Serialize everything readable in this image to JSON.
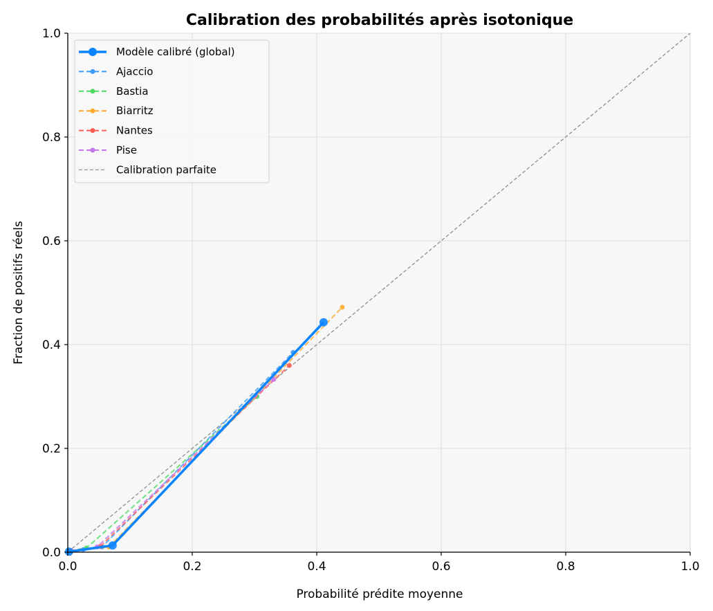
{
  "chart_data": {
    "type": "line",
    "title": "Calibration des probabilités après isotonique",
    "xlabel": "Probabilité prédite moyenne",
    "ylabel": "Fraction de positifs réels",
    "xlim": [
      0,
      1
    ],
    "ylim": [
      0,
      1
    ],
    "xticks": [
      "0.0",
      "0.2",
      "0.4",
      "0.6",
      "0.8",
      "1.0"
    ],
    "yticks": [
      "0.0",
      "0.2",
      "0.4",
      "0.6",
      "0.8",
      "1.0"
    ],
    "grid": true,
    "legend_position": "upper left",
    "series": [
      {
        "name": "Modèle calibré (global)",
        "color": "#0a84ff",
        "style": "solid",
        "marker_size": 6,
        "line_width": 3.5,
        "x": [
          0.002,
          0.072,
          0.411
        ],
        "y": [
          0.001,
          0.013,
          0.443
        ]
      },
      {
        "name": "Ajaccio",
        "color": "#3c9cf5",
        "style": "dashed",
        "marker_size": 3.5,
        "line_width": 2,
        "x": [
          0.003,
          0.025,
          0.055,
          0.362
        ],
        "y": [
          0.002,
          0.005,
          0.01,
          0.385
        ]
      },
      {
        "name": "Bastia",
        "color": "#4cd964",
        "style": "dashed",
        "marker_size": 3.5,
        "line_width": 2,
        "x": [
          0.004,
          0.03,
          0.304
        ],
        "y": [
          0.003,
          0.008,
          0.3
        ]
      },
      {
        "name": "Biarritz",
        "color": "#ffa82e",
        "style": "dashed",
        "marker_size": 3.5,
        "line_width": 2,
        "x": [
          0.005,
          0.066,
          0.441
        ],
        "y": [
          0.002,
          0.01,
          0.472
        ]
      },
      {
        "name": "Nantes",
        "color": "#ff5e57",
        "style": "dashed",
        "marker_size": 3.5,
        "line_width": 2,
        "x": [
          0.004,
          0.052,
          0.356
        ],
        "y": [
          0.002,
          0.011,
          0.36
        ]
      },
      {
        "name": "Pise",
        "color": "#c774ef",
        "style": "dashed",
        "marker_size": 3.5,
        "line_width": 2,
        "x": [
          0.005,
          0.047,
          0.331
        ],
        "y": [
          0.003,
          0.01,
          0.333
        ]
      },
      {
        "name": "Calibration parfaite",
        "color": "#8e8e8e",
        "style": "dashed-thin",
        "marker_size": 0,
        "line_width": 1.3,
        "x": [
          0,
          1
        ],
        "y": [
          0,
          1
        ]
      }
    ]
  }
}
